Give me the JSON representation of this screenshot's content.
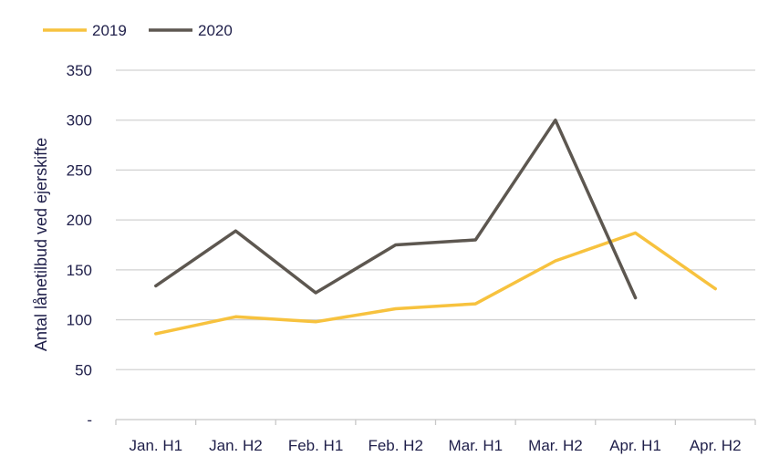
{
  "chart_data": {
    "type": "line",
    "title": "",
    "xlabel": "",
    "ylabel": "Antal lånetilbud ved ejerskifte",
    "categories": [
      "Jan. H1",
      "Jan. H2",
      "Feb. H1",
      "Feb. H2",
      "Mar. H1",
      "Mar. H2",
      "Apr. H1",
      "Apr. H2"
    ],
    "ylim": [
      0,
      350
    ],
    "yticks": [
      0,
      50,
      100,
      150,
      200,
      250,
      300,
      350
    ],
    "ytick_labels": [
      "-",
      "50",
      "100",
      "150",
      "200",
      "250",
      "300",
      "350"
    ],
    "grid": true,
    "legend_position": "top-left",
    "series": [
      {
        "name": "2019",
        "color": "#f7c23e",
        "values": [
          86,
          103,
          98,
          111,
          116,
          159,
          187,
          131
        ]
      },
      {
        "name": "2020",
        "color": "#5d5750",
        "values": [
          134,
          189,
          127,
          175,
          180,
          300,
          122,
          null
        ]
      }
    ]
  }
}
